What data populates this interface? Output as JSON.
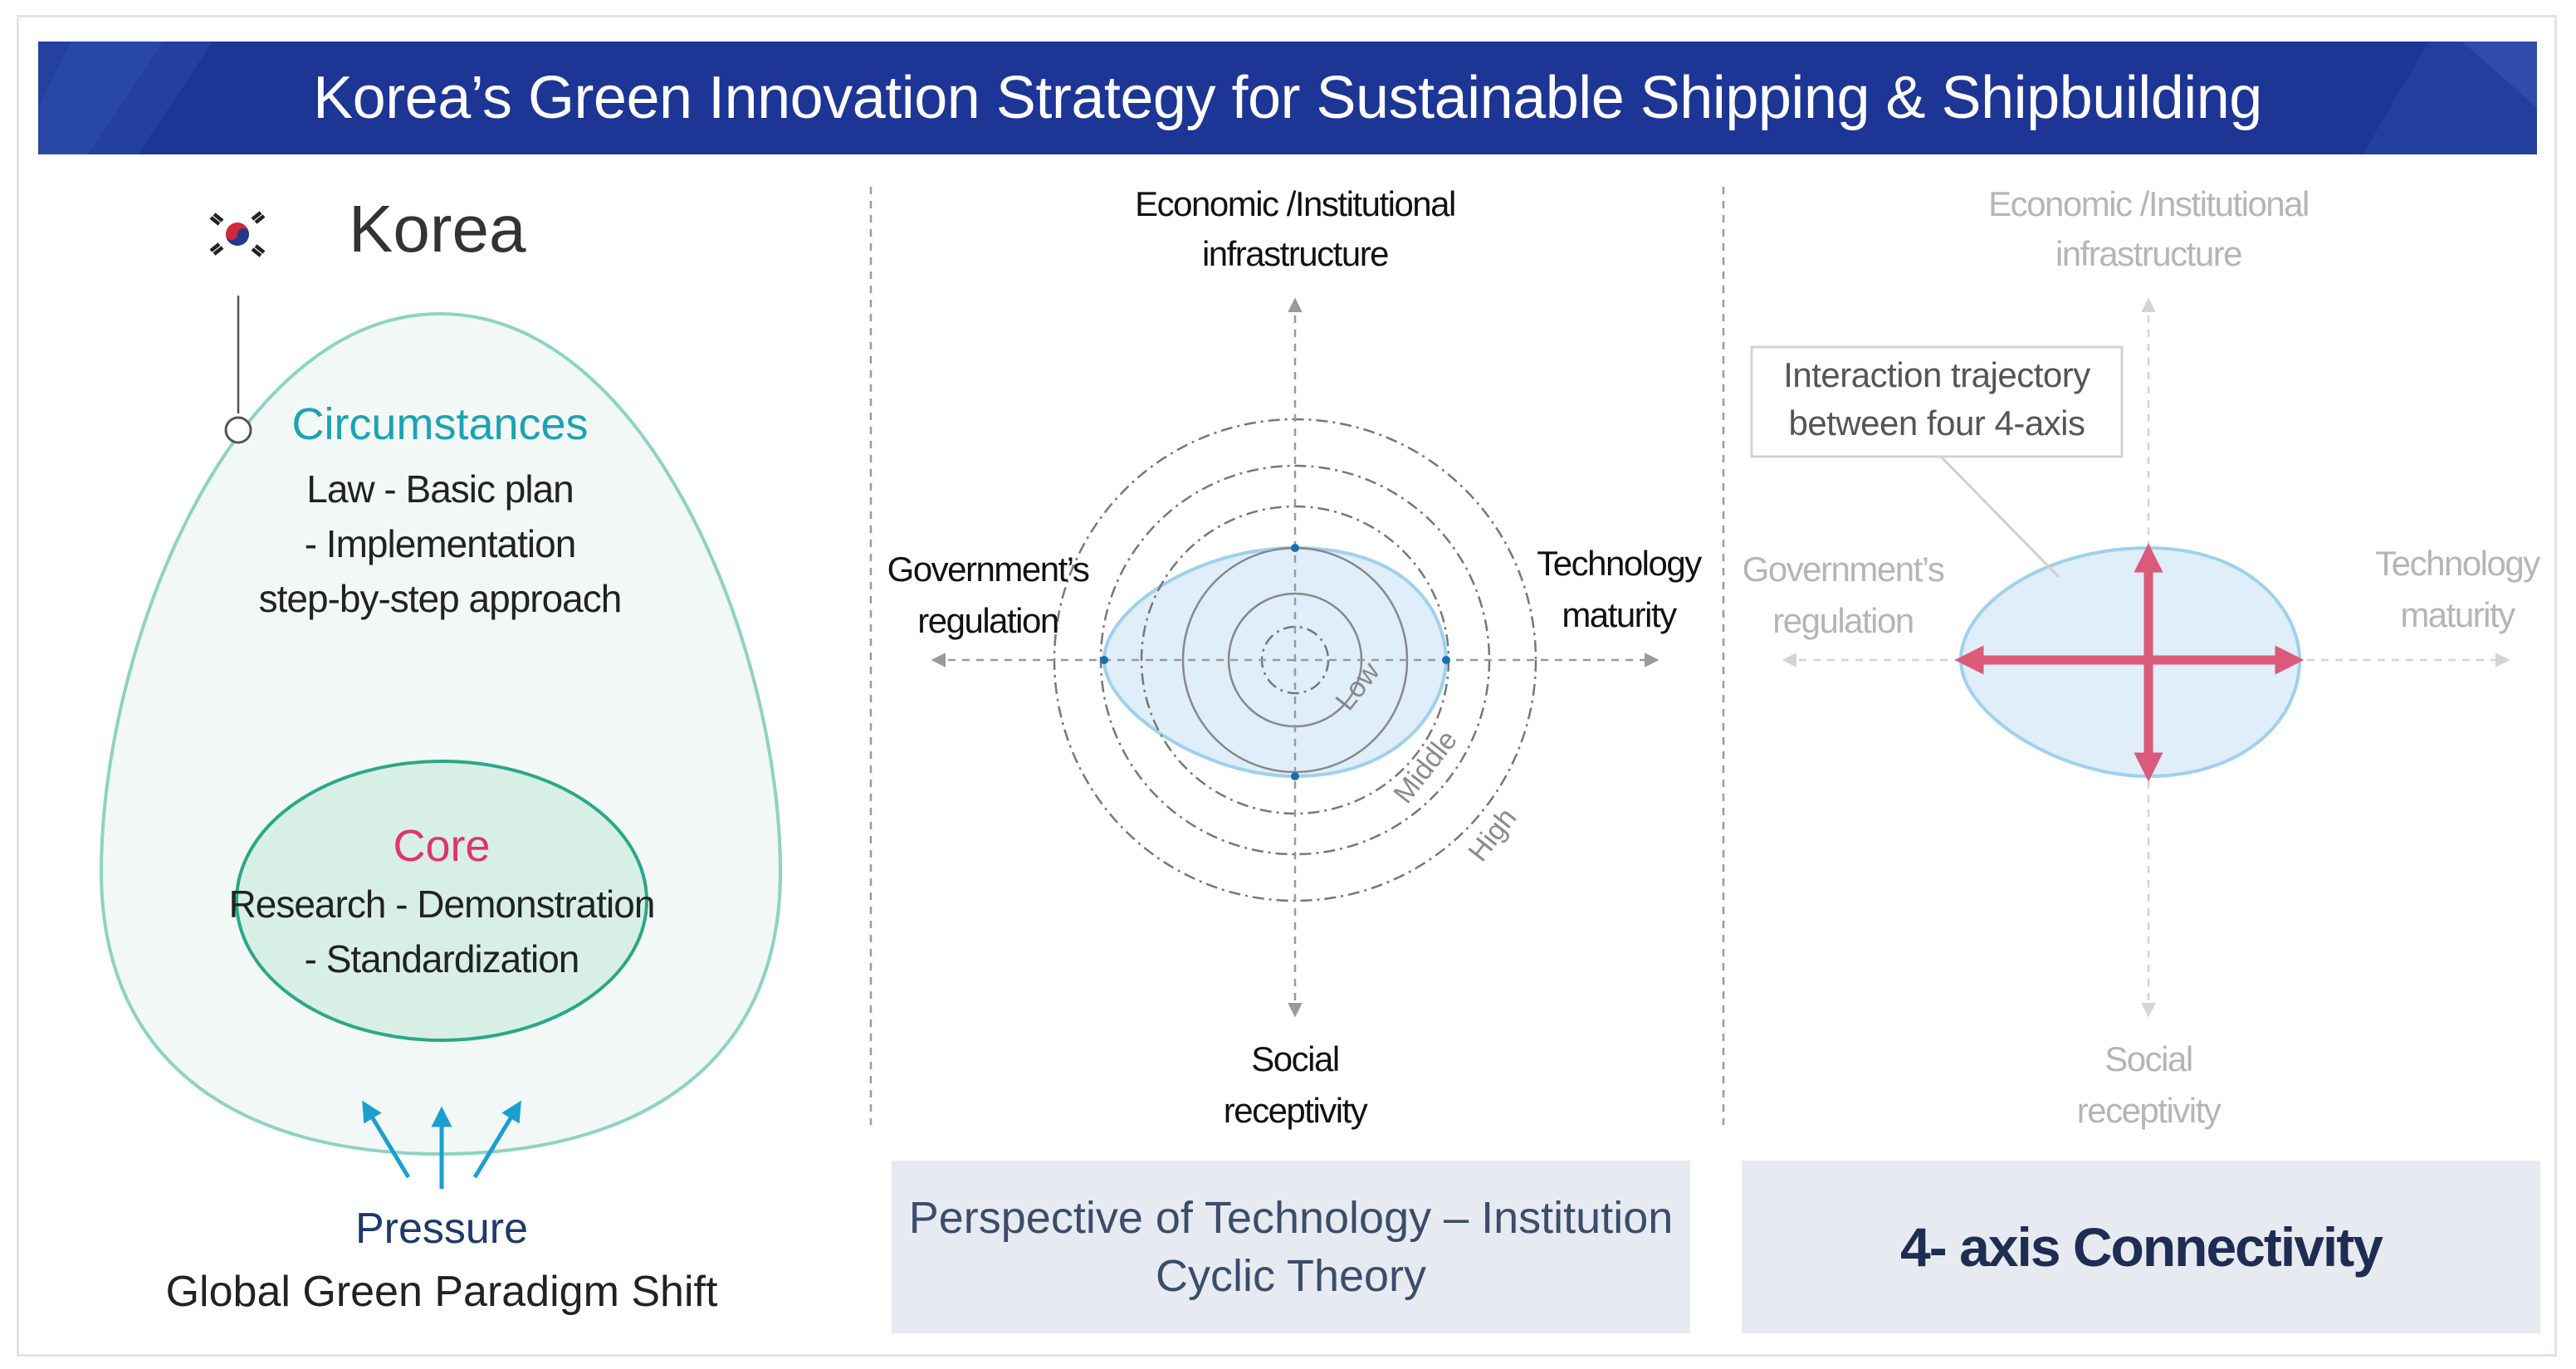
{
  "banner": {
    "title": "Korea’s Green Innovation Strategy for Sustainable Shipping & Shipbuilding",
    "background": "#1d3595"
  },
  "left_panel": {
    "country": "Korea",
    "circumstances": {
      "heading": "Circumstances",
      "lines": [
        "Law - Basic plan",
        "- Implementation",
        "step-by-step approach"
      ]
    },
    "core": {
      "heading": "Core",
      "lines": [
        "Research - Demonstration",
        "- Standardization"
      ]
    },
    "pressure": {
      "heading": "Pressure",
      "subtitle": "Global Green Paradigm Shift"
    }
  },
  "middle_panel": {
    "axes": {
      "top": [
        "Economic /Institutional",
        "infrastructure"
      ],
      "left": [
        "Government’s",
        "regulation"
      ],
      "right": [
        "Technology",
        "maturity"
      ],
      "bottom": [
        "Social",
        "receptivity"
      ]
    },
    "levels": [
      "Low",
      "Middle",
      "High"
    ],
    "caption": [
      "Perspective of Technology – Institution",
      "Cyclic Theory"
    ]
  },
  "right_panel": {
    "axes": {
      "top": [
        "Economic /Institutional",
        "infrastructure"
      ],
      "left": [
        "Government’s",
        "regulation"
      ],
      "right": [
        "Technology",
        "maturity"
      ],
      "bottom": [
        "Social",
        "receptivity"
      ]
    },
    "callout": [
      "Interaction trajectory",
      "between four 4-axis"
    ],
    "caption": "4- axis Connectivity"
  },
  "colors": {
    "teal_accent": "#1aa3b5",
    "core_pink": "#e0336f",
    "pressure_navy": "#1d3a6b",
    "arrow_red": "#db5a7a",
    "shape_fill": "#dfeef9",
    "shape_stroke": "#9fd0ee"
  }
}
